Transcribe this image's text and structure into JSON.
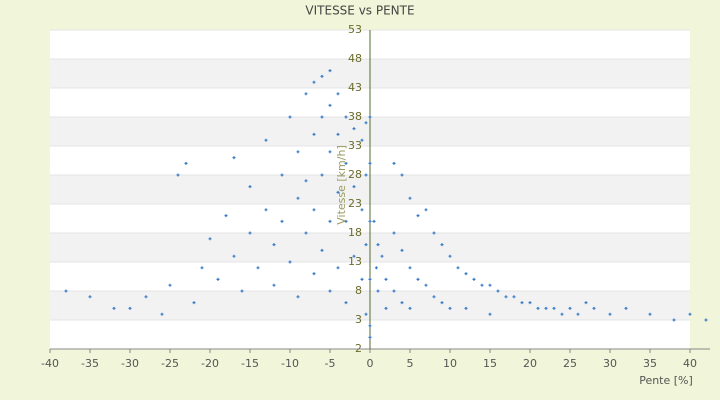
{
  "chart_data": {
    "type": "scatter",
    "title": "VITESSE vs PENTE",
    "x_label": "Pente [%]",
    "y_label": "Vitesse [km/h]",
    "color": "#3a7dc9",
    "xlim": [
      -40,
      42.5
    ],
    "xticks": [
      -40,
      -35,
      -30,
      -25,
      -20,
      -15,
      -10,
      -5,
      0,
      5,
      10,
      15,
      20,
      25,
      30,
      35,
      40
    ],
    "ylim": [
      -2,
      53
    ],
    "yticks": [
      53,
      48,
      43,
      38,
      33,
      28,
      23,
      18,
      13,
      8,
      3,
      -2
    ],
    "x": [
      -38,
      -35,
      -32,
      -30,
      -28,
      -26,
      -25,
      -24,
      -23,
      -22,
      -21,
      -20,
      -19,
      -18,
      -17,
      -17,
      -16,
      -15,
      -15,
      -14,
      -13,
      -13,
      -12,
      -12,
      -11,
      -11,
      -10,
      -10,
      -9,
      -9,
      -9,
      -8,
      -8,
      -8,
      -7,
      -7,
      -7,
      -7,
      -6,
      -6,
      -6,
      -6,
      -5,
      -5,
      -5,
      -5,
      -5,
      -4,
      -4,
      -4,
      -4,
      -3,
      -3,
      -3,
      -3,
      -2,
      -2,
      -2,
      -1,
      -1,
      -1,
      -0.5,
      -0.5,
      -0.5,
      -0.5,
      0,
      0,
      0,
      0,
      0,
      0,
      0.5,
      0.8,
      1,
      1,
      1.5,
      2,
      2,
      3,
      3,
      3,
      4,
      4,
      4,
      5,
      5,
      5,
      6,
      6,
      7,
      7,
      8,
      8,
      9,
      9,
      10,
      10,
      11,
      12,
      12,
      13,
      14,
      15,
      15,
      16,
      17,
      18,
      19,
      20,
      21,
      22,
      23,
      24,
      25,
      26,
      27,
      28,
      30,
      32,
      35,
      38,
      40,
      42
    ],
    "y": [
      8,
      7,
      5,
      5,
      7,
      4,
      9,
      28,
      30,
      6,
      12,
      17,
      10,
      21,
      31,
      14,
      8,
      26,
      18,
      12,
      34,
      22,
      16,
      9,
      28,
      20,
      38,
      13,
      32,
      24,
      7,
      42,
      27,
      18,
      44,
      35,
      22,
      11,
      45,
      38,
      28,
      15,
      46,
      40,
      32,
      20,
      8,
      42,
      35,
      25,
      12,
      38,
      30,
      20,
      6,
      36,
      26,
      14,
      34,
      22,
      10,
      37,
      28,
      16,
      4,
      38,
      30,
      20,
      10,
      2,
      0,
      20,
      12,
      16,
      8,
      14,
      10,
      5,
      30,
      18,
      8,
      28,
      15,
      6,
      24,
      12,
      5,
      21,
      10,
      22,
      9,
      18,
      7,
      16,
      6,
      14,
      5,
      12,
      11,
      5,
      10,
      9,
      9,
      4,
      8,
      7,
      7,
      6,
      6,
      5,
      5,
      5,
      4,
      5,
      4,
      6,
      5,
      4,
      5,
      4,
      3,
      4,
      3
    ],
    "grid": true
  }
}
